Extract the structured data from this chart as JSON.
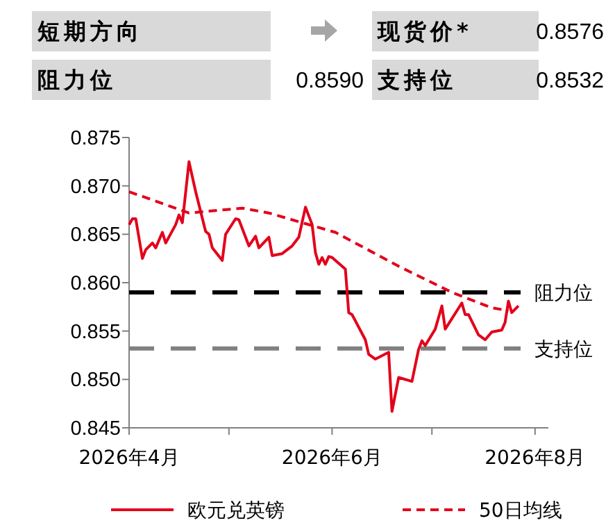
{
  "chart_data": [
    {
      "type": "other",
      "annotations": [
        "短期方向",
        "现货价*",
        "0.8576",
        "阻力位",
        "0.8590",
        "支持位",
        "0.8532"
      ]
    },
    {
      "type": "line",
      "legend": "bottom",
      "grid": false,
      "marker": "none",
      "series": [
        {
          "name": "欧元兑英镑",
          "color": "#e3001b",
          "line_style": "solid",
          "x": [
            "2026-04-01",
            "2026-04-02",
            "2026-04-03",
            "2026-04-05",
            "2026-04-06",
            "2026-04-08",
            "2026-04-09",
            "2026-04-11",
            "2026-04-12",
            "2026-04-15",
            "2026-04-16",
            "2026-04-17",
            "2026-04-19",
            "2026-04-21",
            "2026-04-24",
            "2026-04-25",
            "2026-04-26",
            "2026-04-29",
            "2026-04-30",
            "2026-05-03",
            "2026-05-04",
            "2026-05-07",
            "2026-05-09",
            "2026-05-10",
            "2026-05-13",
            "2026-05-14",
            "2026-05-17",
            "2026-05-20",
            "2026-05-22",
            "2026-05-24",
            "2026-05-26",
            "2026-05-27",
            "2026-05-28",
            "2026-05-29",
            "2026-05-30",
            "2026-05-31",
            "2026-06-01",
            "2026-06-05",
            "2026-06-06",
            "2026-06-07",
            "2026-06-11",
            "2026-06-12",
            "2026-06-14",
            "2026-06-18",
            "2026-06-19",
            "2026-06-21",
            "2026-06-25",
            "2026-06-27",
            "2026-06-28",
            "2026-06-29",
            "2026-07-02",
            "2026-07-04",
            "2026-07-05",
            "2026-07-10",
            "2026-07-11",
            "2026-07-12",
            "2026-07-15",
            "2026-07-17",
            "2026-07-19",
            "2026-07-22",
            "2026-07-23",
            "2026-07-24",
            "2026-07-25",
            "2026-07-27"
          ],
          "values": [
            0.866,
            0.8666,
            0.8666,
            0.8625,
            0.8634,
            0.8641,
            0.8636,
            0.8652,
            0.8641,
            0.866,
            0.867,
            0.8662,
            0.8725,
            0.8694,
            0.8653,
            0.865,
            0.8636,
            0.8623,
            0.865,
            0.8666,
            0.8665,
            0.8638,
            0.8648,
            0.8636,
            0.8647,
            0.8628,
            0.863,
            0.8638,
            0.8647,
            0.8678,
            0.866,
            0.8631,
            0.8619,
            0.8626,
            0.8619,
            0.8627,
            0.8626,
            0.8614,
            0.8569,
            0.8567,
            0.8541,
            0.8526,
            0.8521,
            0.8528,
            0.8467,
            0.8502,
            0.8498,
            0.8531,
            0.854,
            0.8535,
            0.8552,
            0.8576,
            0.8552,
            0.8579,
            0.8567,
            0.8567,
            0.8546,
            0.8541,
            0.8549,
            0.8551,
            0.8559,
            0.8581,
            0.8569,
            0.8576
          ]
        },
        {
          "name": "50日均线",
          "color": "#e3001b",
          "line_style": "dashed",
          "x": [
            "2026-04-01",
            "2026-04-19",
            "2026-05-05",
            "2026-05-13",
            "2026-05-24",
            "2026-06-02",
            "2026-06-21",
            "2026-07-07",
            "2026-07-19",
            "2026-07-24"
          ],
          "values": [
            0.8694,
            0.8672,
            0.8677,
            0.8672,
            0.8661,
            0.8652,
            0.8617,
            0.859,
            0.8574,
            0.8571
          ]
        }
      ],
      "xlim": [
        "2026-04-01",
        "2026-08-05"
      ],
      "xticks": [
        {
          "value": "2026-04-01",
          "label": "2026年4月"
        },
        {
          "value": "2026-05-01",
          "label": null
        },
        {
          "value": "2026-06-01",
          "label": "2026年6月"
        },
        {
          "value": "2026-07-01",
          "label": null
        },
        {
          "value": "2026-08-01",
          "label": "2026年8月"
        }
      ],
      "ylim": [
        0.845,
        0.875
      ],
      "yticks": [
        {
          "value": 0.845,
          "label": "0.845"
        },
        {
          "value": 0.85,
          "label": "0.850"
        },
        {
          "value": 0.855,
          "label": "0.855"
        },
        {
          "value": 0.86,
          "label": "0.860"
        },
        {
          "value": 0.865,
          "label": "0.865"
        },
        {
          "value": 0.87,
          "label": "0.870"
        },
        {
          "value": 0.875,
          "label": "0.875"
        }
      ],
      "ref_lines": [
        {
          "axis": "y",
          "value": 0.859,
          "label": "阻力位",
          "color": "#000000",
          "line_style": "dashed"
        },
        {
          "axis": "y",
          "value": 0.8532,
          "label": "支持位",
          "color": "#808080",
          "line_style": "dashed"
        }
      ]
    }
  ]
}
